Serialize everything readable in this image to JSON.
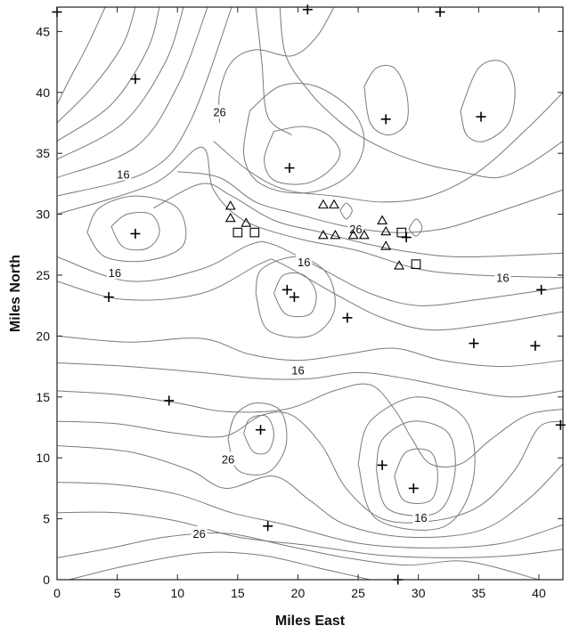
{
  "chart_data": {
    "type": "scatter",
    "xlabel": "Miles East",
    "ylabel": "Miles North",
    "xlim": [
      0,
      42
    ],
    "ylim": [
      0,
      47
    ],
    "xticks": [
      0,
      5,
      10,
      15,
      20,
      25,
      30,
      35,
      40
    ],
    "yticks": [
      0,
      5,
      10,
      15,
      20,
      25,
      30,
      35,
      40,
      45
    ],
    "grid": false,
    "marker_types": [
      "plus",
      "triangle",
      "square"
    ],
    "points_plus": [
      [
        0,
        46.6
      ],
      [
        20.8,
        46.8
      ],
      [
        31.8,
        46.6
      ],
      [
        6.5,
        41.1
      ],
      [
        27.3,
        37.8
      ],
      [
        35.2,
        38.0
      ],
      [
        19.3,
        33.8
      ],
      [
        6.5,
        28.4
      ],
      [
        29.0,
        28.1
      ],
      [
        4.3,
        23.2
      ],
      [
        19.1,
        23.8
      ],
      [
        19.7,
        23.2
      ],
      [
        24.1,
        21.5
      ],
      [
        40.2,
        23.8
      ],
      [
        34.6,
        19.4
      ],
      [
        39.7,
        19.2
      ],
      [
        9.3,
        14.7
      ],
      [
        16.9,
        12.3
      ],
      [
        41.8,
        12.7
      ],
      [
        27.0,
        9.4
      ],
      [
        29.6,
        7.5
      ],
      [
        17.5,
        4.4
      ],
      [
        28.3,
        0
      ]
    ],
    "points_triangle": [
      [
        14.4,
        30.7
      ],
      [
        14.4,
        29.7
      ],
      [
        15.7,
        29.3
      ],
      [
        22.1,
        30.8
      ],
      [
        23.0,
        30.8
      ],
      [
        27.0,
        29.5
      ],
      [
        27.3,
        28.6
      ],
      [
        27.3,
        27.4
      ],
      [
        22.1,
        28.3
      ],
      [
        23.1,
        28.3
      ],
      [
        24.6,
        28.3
      ],
      [
        25.5,
        28.3
      ],
      [
        28.4,
        25.8
      ]
    ],
    "points_square": [
      [
        15.0,
        28.5
      ],
      [
        16.4,
        28.5
      ],
      [
        28.6,
        28.5
      ],
      [
        29.8,
        25.9
      ]
    ],
    "contour_labels": [
      {
        "text": "26",
        "x": 13.5,
        "y": 38.4
      },
      {
        "text": "16",
        "x": 5.5,
        "y": 33.3
      },
      {
        "text": "26",
        "x": 24.8,
        "y": 28.8
      },
      {
        "text": "16",
        "x": 20.5,
        "y": 26.1
      },
      {
        "text": "16",
        "x": 4.8,
        "y": 25.2
      },
      {
        "text": "16",
        "x": 37.0,
        "y": 24.8
      },
      {
        "text": "16",
        "x": 20.0,
        "y": 17.2
      },
      {
        "text": "26",
        "x": 14.2,
        "y": 9.9
      },
      {
        "text": "16",
        "x": 30.2,
        "y": 5.1
      },
      {
        "text": "26",
        "x": 11.8,
        "y": 3.8
      }
    ],
    "contours": [
      [
        [
          0.0,
          39.0
        ],
        [
          1.0,
          41.0
        ],
        [
          2.5,
          43.8
        ],
        [
          4.0,
          47.0
        ]
      ],
      [
        [
          0.0,
          37.5
        ],
        [
          3.0,
          40.5
        ],
        [
          5.5,
          44.0
        ],
        [
          6.5,
          47.0
        ]
      ],
      [
        [
          0.0,
          36.0
        ],
        [
          4.5,
          39.0
        ],
        [
          7.5,
          43.5
        ],
        [
          8.5,
          47.0
        ]
      ],
      [
        [
          0.0,
          34.5
        ],
        [
          5.5,
          37.5
        ],
        [
          9.0,
          42.5
        ],
        [
          10.5,
          47.0
        ]
      ],
      [
        [
          0.0,
          33.0
        ],
        [
          6.5,
          35.5
        ],
        [
          10.0,
          40.5
        ],
        [
          12.5,
          47.0
        ]
      ],
      [
        [
          0.0,
          31.5
        ],
        [
          7.5,
          33.5
        ],
        [
          11.0,
          37.5
        ],
        [
          14.5,
          47.0
        ]
      ],
      [
        [
          0.0,
          30.0
        ],
        [
          8.0,
          32.5
        ],
        [
          12.0,
          35.5
        ],
        [
          13.0,
          32.0
        ],
        [
          15.5,
          29.5
        ],
        [
          20.0,
          28.0
        ],
        [
          25.0,
          27.0
        ],
        [
          30.0,
          25.5
        ],
        [
          35.0,
          25.0
        ],
        [
          42.0,
          24.8
        ]
      ],
      [
        [
          8.0,
          30.5
        ],
        [
          12.0,
          32.5
        ],
        [
          14.5,
          31.5
        ],
        [
          18.0,
          29.5
        ],
        [
          22.0,
          28.5
        ],
        [
          26.0,
          27.5
        ],
        [
          30.0,
          26.8
        ],
        [
          34.0,
          26.5
        ],
        [
          42.0,
          26.8
        ]
      ],
      [
        [
          10.0,
          33.5
        ],
        [
          13.5,
          33.0
        ],
        [
          16.5,
          31.0
        ],
        [
          20.0,
          30.0
        ],
        [
          24.0,
          29.0
        ],
        [
          28.0,
          28.5
        ],
        [
          32.0,
          28.8
        ],
        [
          36.0,
          30.0
        ],
        [
          42.0,
          32.0
        ]
      ],
      [
        [
          13.0,
          36.0
        ],
        [
          16.0,
          33.5
        ],
        [
          19.0,
          32.0
        ],
        [
          23.0,
          31.5
        ],
        [
          27.0,
          31.0
        ],
        [
          31.0,
          31.5
        ],
        [
          35.0,
          33.5
        ],
        [
          39.0,
          37.0
        ],
        [
          42.0,
          40.0
        ]
      ],
      [
        [
          16.5,
          47.0
        ],
        [
          17.0,
          42.5
        ],
        [
          17.5,
          38.0
        ],
        [
          19.5,
          36.5
        ]
      ],
      [
        [
          18.5,
          47.0
        ],
        [
          19.0,
          43.0
        ],
        [
          21.0,
          40.0
        ],
        [
          23.0,
          38.0
        ],
        [
          25.0,
          36.5
        ],
        [
          28.0,
          35.0
        ],
        [
          31.0,
          34.0
        ],
        [
          33.5,
          33.5
        ],
        [
          36.5,
          33.0
        ],
        [
          39.0,
          34.0
        ],
        [
          42.0,
          36.0
        ]
      ],
      [
        [
          18.0,
          36.8
        ],
        [
          17.2,
          34.5
        ],
        [
          18.0,
          32.8
        ],
        [
          20.5,
          32.5
        ],
        [
          22.5,
          33.5
        ],
        [
          23.5,
          35.0
        ],
        [
          22.5,
          36.5
        ],
        [
          20.5,
          37.2
        ],
        [
          18.0,
          36.8
        ]
      ],
      [
        [
          16.0,
          38.5
        ],
        [
          15.5,
          35.0
        ],
        [
          16.5,
          32.8
        ],
        [
          19.0,
          31.8
        ],
        [
          22.0,
          32.0
        ],
        [
          24.5,
          33.5
        ],
        [
          25.5,
          36.0
        ],
        [
          24.5,
          38.5
        ],
        [
          21.5,
          40.5
        ],
        [
          18.5,
          40.5
        ],
        [
          16.0,
          38.5
        ]
      ],
      [
        [
          23.0,
          47.0
        ],
        [
          21.5,
          44.5
        ],
        [
          19.5,
          43.0
        ],
        [
          16.5,
          43.5
        ],
        [
          14.5,
          42.5
        ],
        [
          13.5,
          40.0
        ],
        [
          13.5,
          37.5
        ]
      ],
      [
        [
          25.5,
          40.5
        ],
        [
          26.0,
          37.5
        ],
        [
          27.5,
          36.5
        ],
        [
          29.0,
          37.5
        ],
        [
          29.0,
          40.0
        ],
        [
          28.0,
          42.0
        ],
        [
          26.5,
          42.0
        ],
        [
          25.5,
          40.5
        ]
      ],
      [
        [
          33.5,
          38.5
        ],
        [
          34.0,
          36.5
        ],
        [
          35.5,
          36.0
        ],
        [
          37.5,
          37.5
        ],
        [
          38.0,
          40.5
        ],
        [
          37.0,
          42.5
        ],
        [
          35.0,
          42.0
        ],
        [
          33.5,
          38.5
        ]
      ],
      [
        [
          4.5,
          29.0
        ],
        [
          5.5,
          27.3
        ],
        [
          7.5,
          27.2
        ],
        [
          8.5,
          28.5
        ],
        [
          7.8,
          30.0
        ],
        [
          5.8,
          30.0
        ],
        [
          4.5,
          29.0
        ]
      ],
      [
        [
          2.5,
          28.5
        ],
        [
          4.0,
          26.5
        ],
        [
          7.5,
          26.2
        ],
        [
          10.5,
          27.5
        ],
        [
          10.0,
          30.5
        ],
        [
          6.5,
          31.5
        ],
        [
          3.5,
          30.5
        ],
        [
          2.5,
          28.5
        ]
      ],
      [
        [
          0.0,
          26.5
        ],
        [
          6.0,
          24.5
        ],
        [
          12.0,
          25.5
        ],
        [
          16.0,
          27.5
        ],
        [
          18.0,
          27.5
        ],
        [
          22.0,
          25.5
        ],
        [
          26.0,
          23.5
        ],
        [
          30.0,
          22.5
        ],
        [
          35.0,
          23.0
        ],
        [
          42.0,
          24.0
        ]
      ],
      [
        [
          0.0,
          24.5
        ],
        [
          5.5,
          23.0
        ],
        [
          12.0,
          23.5
        ],
        [
          17.0,
          26.0
        ],
        [
          18.5,
          26.0
        ],
        [
          23.0,
          23.5
        ],
        [
          27.0,
          21.5
        ],
        [
          31.0,
          20.5
        ],
        [
          36.0,
          21.0
        ],
        [
          42.0,
          22.0
        ]
      ],
      [
        [
          18.0,
          23.5
        ],
        [
          19.0,
          21.8
        ],
        [
          21.0,
          21.8
        ],
        [
          21.5,
          23.5
        ],
        [
          20.5,
          25.0
        ],
        [
          18.8,
          25.0
        ],
        [
          18.0,
          23.5
        ]
      ],
      [
        [
          16.5,
          23.5
        ],
        [
          17.5,
          20.5
        ],
        [
          21.0,
          20.0
        ],
        [
          23.0,
          22.0
        ],
        [
          22.5,
          25.0
        ],
        [
          20.0,
          26.5
        ],
        [
          17.0,
          25.5
        ],
        [
          16.5,
          23.5
        ]
      ],
      [
        [
          0.0,
          20.0
        ],
        [
          6.0,
          19.5
        ],
        [
          12.0,
          19.8
        ],
        [
          16.0,
          18.5
        ],
        [
          20.0,
          18.0
        ],
        [
          24.0,
          18.5
        ],
        [
          28.0,
          19.0
        ],
        [
          32.0,
          18.0
        ],
        [
          37.0,
          17.5
        ],
        [
          42.0,
          18.0
        ]
      ],
      [
        [
          0.0,
          17.8
        ],
        [
          6.0,
          17.5
        ],
        [
          12.0,
          17.0
        ],
        [
          17.0,
          16.5
        ],
        [
          21.0,
          16.5
        ],
        [
          25.0,
          17.0
        ],
        [
          29.0,
          16.5
        ],
        [
          34.0,
          15.5
        ],
        [
          38.0,
          15.0
        ],
        [
          42.0,
          15.5
        ]
      ],
      [
        [
          0.0,
          15.5
        ],
        [
          5.0,
          15.2
        ],
        [
          10.0,
          14.5
        ],
        [
          14.0,
          13.8
        ],
        [
          19.0,
          14.0
        ],
        [
          23.0,
          15.5
        ],
        [
          26.0,
          16.0
        ],
        [
          28.0,
          14.0
        ],
        [
          29.5,
          11.5
        ],
        [
          31.0,
          9.5
        ],
        [
          33.5,
          9.5
        ],
        [
          36.0,
          11.5
        ],
        [
          39.0,
          13.5
        ],
        [
          42.0,
          14.0
        ]
      ],
      [
        [
          0.0,
          13.0
        ],
        [
          5.0,
          12.8
        ],
        [
          10.0,
          12.0
        ],
        [
          14.0,
          11.8
        ],
        [
          17.0,
          13.5
        ],
        [
          19.5,
          13.5
        ],
        [
          22.0,
          11.0
        ],
        [
          24.0,
          7.5
        ],
        [
          27.0,
          5.0
        ],
        [
          31.0,
          4.8
        ],
        [
          35.0,
          6.0
        ],
        [
          38.0,
          9.0
        ],
        [
          40.0,
          12.5
        ],
        [
          42.0,
          13.0
        ]
      ],
      [
        [
          0.0,
          11.0
        ],
        [
          6.0,
          10.5
        ],
        [
          11.0,
          9.0
        ],
        [
          14.0,
          7.5
        ],
        [
          18.0,
          8.5
        ],
        [
          21.0,
          6.5
        ],
        [
          24.0,
          4.5
        ],
        [
          29.0,
          3.5
        ],
        [
          35.0,
          4.0
        ],
        [
          39.0,
          6.5
        ],
        [
          42.0,
          9.5
        ]
      ],
      [
        [
          0.0,
          8.0
        ],
        [
          5.0,
          7.8
        ],
        [
          10.0,
          7.0
        ],
        [
          14.5,
          5.5
        ],
        [
          19.0,
          4.5
        ],
        [
          25.0,
          3.0
        ],
        [
          31.0,
          2.6
        ],
        [
          37.0,
          3.0
        ],
        [
          42.0,
          4.5
        ]
      ],
      [
        [
          0.0,
          5.5
        ],
        [
          5.0,
          5.5
        ],
        [
          10.0,
          4.8
        ],
        [
          15.0,
          3.5
        ],
        [
          21.0,
          2.8
        ],
        [
          27.0,
          2.0
        ],
        [
          33.0,
          1.8
        ],
        [
          38.0,
          2.0
        ],
        [
          42.0,
          2.5
        ]
      ],
      [
        [
          0.0,
          1.8
        ],
        [
          4.0,
          2.5
        ],
        [
          9.0,
          3.5
        ],
        [
          14.0,
          3.8
        ],
        [
          19.0,
          2.8
        ],
        [
          24.0,
          1.8
        ],
        [
          29.0,
          1.2
        ],
        [
          34.0,
          1.5
        ],
        [
          40.0,
          0.0
        ]
      ],
      [
        [
          1.0,
          0.0
        ],
        [
          6.0,
          1.2
        ],
        [
          12.0,
          2.2
        ],
        [
          17.0,
          2.0
        ],
        [
          22.0,
          0.9
        ],
        [
          26.0,
          0.0
        ]
      ],
      [
        [
          15.5,
          12.0
        ],
        [
          16.3,
          10.5
        ],
        [
          17.5,
          10.5
        ],
        [
          18.0,
          12.0
        ],
        [
          17.4,
          13.4
        ],
        [
          16.0,
          13.2
        ],
        [
          15.5,
          12.0
        ]
      ],
      [
        [
          14.2,
          11.5
        ],
        [
          15.0,
          9.0
        ],
        [
          17.5,
          8.8
        ],
        [
          19.0,
          11.0
        ],
        [
          18.6,
          13.8
        ],
        [
          16.5,
          14.5
        ],
        [
          14.8,
          13.5
        ],
        [
          14.2,
          11.5
        ]
      ],
      [
        [
          28.0,
          8.5
        ],
        [
          28.8,
          6.5
        ],
        [
          31.0,
          6.5
        ],
        [
          31.6,
          8.5
        ],
        [
          31.0,
          10.5
        ],
        [
          29.0,
          10.5
        ],
        [
          28.0,
          8.5
        ]
      ],
      [
        [
          26.5,
          9.0
        ],
        [
          27.5,
          5.8
        ],
        [
          31.5,
          5.5
        ],
        [
          33.0,
          8.5
        ],
        [
          32.5,
          12.0
        ],
        [
          29.5,
          13.0
        ],
        [
          27.0,
          11.5
        ],
        [
          26.5,
          9.0
        ]
      ],
      [
        [
          25.0,
          9.5
        ],
        [
          26.5,
          5.0
        ],
        [
          32.0,
          4.3
        ],
        [
          34.5,
          8.0
        ],
        [
          34.0,
          13.0
        ],
        [
          30.0,
          15.0
        ],
        [
          26.0,
          13.0
        ],
        [
          25.0,
          9.5
        ]
      ],
      [
        [
          23.5,
          30.3
        ],
        [
          24.0,
          29.6
        ],
        [
          24.5,
          30.3
        ],
        [
          24.0,
          30.9
        ],
        [
          23.5,
          30.3
        ]
      ],
      [
        [
          29.2,
          28.8
        ],
        [
          29.8,
          28.2
        ],
        [
          30.3,
          28.9
        ],
        [
          29.8,
          29.6
        ],
        [
          29.2,
          28.8
        ]
      ]
    ]
  }
}
